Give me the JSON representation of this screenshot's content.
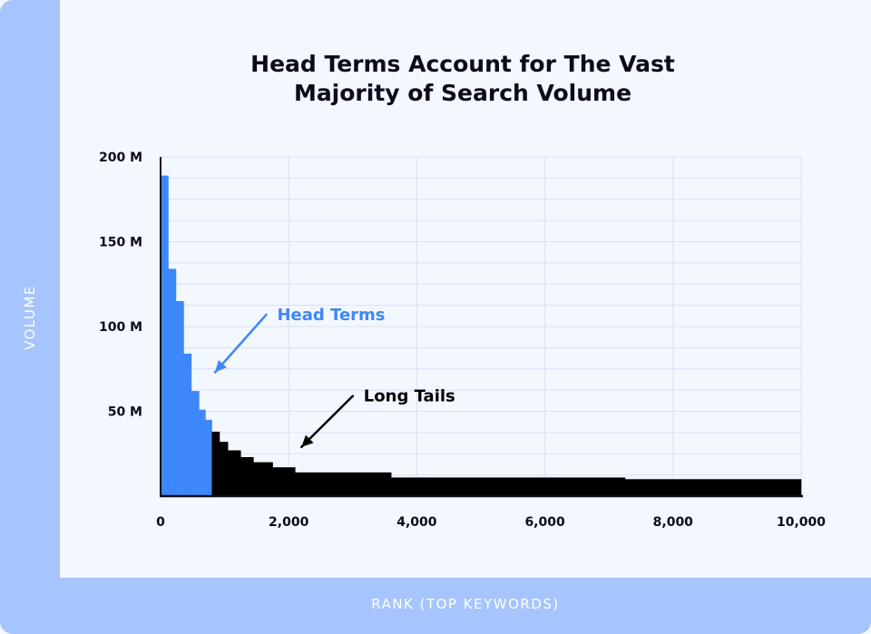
{
  "title_lines": [
    "Head Terms Account for The Vast",
    "Majority of Search Volume"
  ],
  "colors": {
    "head": "#3d87fa",
    "tail": "#000000",
    "band": "#a6c4fd",
    "grid": "#d9e2f5"
  },
  "chart_data": {
    "type": "bar",
    "title": "Head Terms Account for The Vast Majority of Search Volume",
    "xlabel": "RANK (TOP KEYWORDS)",
    "ylabel": "VOLUME",
    "xlim": [
      0,
      10000
    ],
    "ylim": [
      0,
      200
    ],
    "grid": true,
    "xticks": [
      0,
      2000,
      4000,
      6000,
      8000,
      10000
    ],
    "xtick_labels": [
      "0",
      "2,000",
      "4,000",
      "6,000",
      "8,000",
      "10,000"
    ],
    "yticks": [
      50,
      100,
      150,
      200
    ],
    "ytick_labels": [
      "50 M",
      "100 M",
      "150 M",
      "200 M"
    ],
    "series": [
      {
        "name": "Head Terms",
        "color": "#3d87fa",
        "bins": [
          {
            "x0": 0,
            "x1": 120,
            "y": 189
          },
          {
            "x0": 120,
            "x1": 240,
            "y": 134
          },
          {
            "x0": 240,
            "x1": 360,
            "y": 115
          },
          {
            "x0": 360,
            "x1": 480,
            "y": 84
          },
          {
            "x0": 480,
            "x1": 600,
            "y": 62
          },
          {
            "x0": 600,
            "x1": 700,
            "y": 51
          },
          {
            "x0": 700,
            "x1": 800,
            "y": 45
          }
        ]
      },
      {
        "name": "Long Tails",
        "color": "#000000",
        "bins": [
          {
            "x0": 800,
            "x1": 920,
            "y": 38
          },
          {
            "x0": 920,
            "x1": 1050,
            "y": 32
          },
          {
            "x0": 1050,
            "x1": 1250,
            "y": 27
          },
          {
            "x0": 1250,
            "x1": 1450,
            "y": 23
          },
          {
            "x0": 1450,
            "x1": 1750,
            "y": 20
          },
          {
            "x0": 1750,
            "x1": 2100,
            "y": 17
          },
          {
            "x0": 2100,
            "x1": 3600,
            "y": 14
          },
          {
            "x0": 3600,
            "x1": 7250,
            "y": 11
          },
          {
            "x0": 7250,
            "x1": 10000,
            "y": 10
          }
        ]
      }
    ],
    "annotations": [
      {
        "text": "Head Terms",
        "color": "#3d87fa",
        "arrow_from": [
          1650,
          107
        ],
        "arrow_to": [
          850,
          73
        ]
      },
      {
        "text": "Long Tails",
        "color": "#000000",
        "arrow_from": [
          3000,
          59
        ],
        "arrow_to": [
          2200,
          29
        ]
      }
    ]
  }
}
